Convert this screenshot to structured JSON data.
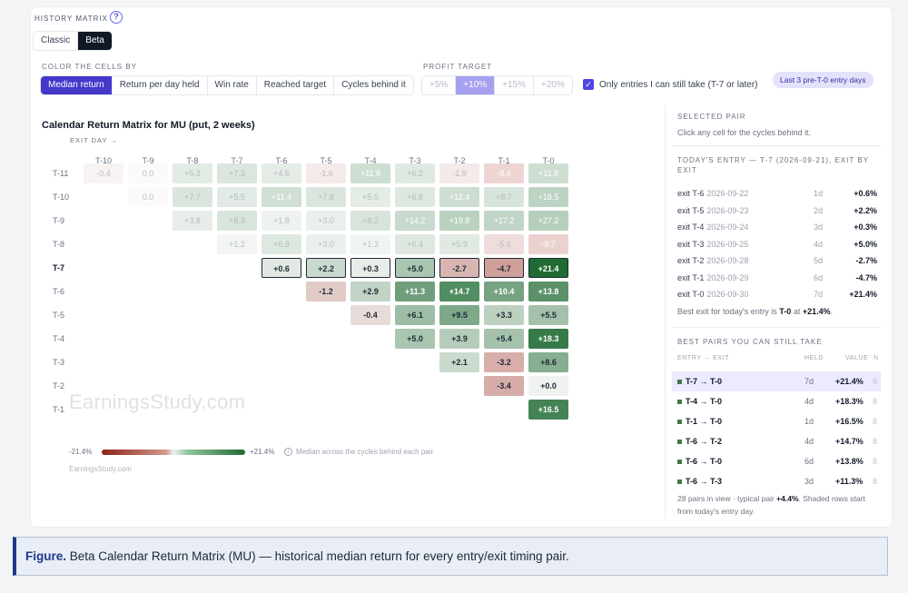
{
  "header": {
    "title": "HISTORY MATRIX",
    "help_icon": "?"
  },
  "view_toggle": [
    {
      "label": "Classic",
      "active": false
    },
    {
      "label": "Beta",
      "active": true
    }
  ],
  "controls": {
    "color_label": "COLOR THE CELLS BY",
    "color_options": [
      {
        "label": "Median return",
        "active": true
      },
      {
        "label": "Return per day held",
        "active": false
      },
      {
        "label": "Win rate",
        "active": false
      },
      {
        "label": "Reached target",
        "active": false
      },
      {
        "label": "Cycles behind it",
        "active": false
      }
    ],
    "profit_label": "PROFIT TARGET",
    "profit_options": [
      {
        "label": "+5%",
        "active": false
      },
      {
        "label": "+10%",
        "active": true
      },
      {
        "label": "+15%",
        "active": false
      },
      {
        "label": "+20%",
        "active": false
      }
    ],
    "only_entries_label": "Only entries I can still take (T-7 or later)",
    "only_entries_checked": true,
    "pill": "Last 3 pre-T-0 entry days"
  },
  "matrix": {
    "title": "Calendar Return Matrix for MU (put, 2 weeks)",
    "exit_day_label": "EXIT DAY →",
    "columns": [
      "T-10",
      "T-9",
      "T-8",
      "T-7",
      "T-6",
      "T-5",
      "T-4",
      "T-3",
      "T-2",
      "T-1",
      "T-0"
    ],
    "current_row": "T-7",
    "rows": [
      {
        "label": "T-11",
        "start": 0,
        "dim": true,
        "values": [
          "-0.4",
          "0.0",
          "+5.3",
          "+7.3",
          "+4.6",
          "-1.6",
          "+11.8",
          "+6.2",
          "-1.9",
          "-8.4",
          "+11.8"
        ],
        "nums": [
          -0.4,
          0.0,
          5.3,
          7.3,
          4.6,
          -1.6,
          11.8,
          6.2,
          -1.9,
          -8.4,
          11.8
        ]
      },
      {
        "label": "T-10",
        "start": 1,
        "dim": true,
        "values": [
          "0.0",
          "+7.7",
          "+5.5",
          "+11.4",
          "+7.8",
          "+5.0",
          "+6.8",
          "+12.4",
          "+8.7",
          "+18.5"
        ],
        "nums": [
          0.0,
          7.7,
          5.5,
          11.4,
          7.8,
          5.0,
          6.8,
          12.4,
          8.7,
          18.5
        ]
      },
      {
        "label": "T-9",
        "start": 2,
        "dim": true,
        "values": [
          "+3.8",
          "+8.3",
          "+1.8",
          "+3.0",
          "+8.2",
          "+14.2",
          "+19.8",
          "+17.2",
          "+27.2"
        ],
        "nums": [
          3.8,
          8.3,
          1.8,
          3.0,
          8.2,
          14.2,
          19.8,
          17.2,
          27.2
        ]
      },
      {
        "label": "T-8",
        "start": 3,
        "dim": true,
        "values": [
          "+1.2",
          "+6.8",
          "+3.0",
          "+1.3",
          "+6.4",
          "+5.9",
          "-5.6",
          "-9.7"
        ],
        "nums": [
          1.2,
          6.8,
          3.0,
          1.3,
          6.4,
          5.9,
          -5.6,
          -9.7
        ]
      },
      {
        "label": "T-7",
        "start": 4,
        "dim": false,
        "sel": true,
        "values": [
          "+0.6",
          "+2.2",
          "+0.3",
          "+5.0",
          "-2.7",
          "-4.7",
          "+21.4"
        ],
        "nums": [
          0.6,
          2.2,
          0.3,
          5.0,
          -2.7,
          -4.7,
          21.4
        ]
      },
      {
        "label": "T-6",
        "start": 5,
        "dim": false,
        "values": [
          "-1.2",
          "+2.9",
          "+11.3",
          "+14.7",
          "+10.4",
          "+13.8"
        ],
        "nums": [
          -1.2,
          2.9,
          11.3,
          14.7,
          10.4,
          13.8
        ]
      },
      {
        "label": "T-5",
        "start": 6,
        "dim": false,
        "values": [
          "-0.4",
          "+6.1",
          "+9.5",
          "+3.3",
          "+5.5"
        ],
        "nums": [
          -0.4,
          6.1,
          9.5,
          3.3,
          5.5
        ]
      },
      {
        "label": "T-4",
        "start": 7,
        "dim": false,
        "values": [
          "+5.0",
          "+3.9",
          "+5.4",
          "+18.3"
        ],
        "nums": [
          5.0,
          3.9,
          5.4,
          18.3
        ]
      },
      {
        "label": "T-3",
        "start": 8,
        "dim": false,
        "values": [
          "+2.1",
          "-3.2",
          "+8.6"
        ],
        "nums": [
          2.1,
          -3.2,
          8.6
        ]
      },
      {
        "label": "T-2",
        "start": 9,
        "dim": false,
        "values": [
          "-3.4",
          "+0.0"
        ],
        "nums": [
          -3.4,
          0.0
        ]
      },
      {
        "label": "T-1",
        "start": 10,
        "dim": false,
        "values": [
          "+16.5"
        ],
        "nums": [
          16.5
        ]
      }
    ],
    "scale_min": -21.4,
    "scale_max": 21.4,
    "legend_min": "-21.4%",
    "legend_max": "+21.4%",
    "legend_note": "Median across the cycles behind each pair",
    "watermark": "EarningsStudy.com",
    "credit": "EarningsStudy.com"
  },
  "right_panel": {
    "selected_title": "SELECTED PAIR",
    "selected_hint": "Click any cell for the cycles behind it.",
    "today_title": "TODAY'S ENTRY — T-7 (2026-09-21), EXIT BY EXIT",
    "today_rows": [
      {
        "exit": "exit T-6",
        "date": "2026-09-22",
        "held": "1d",
        "value": "+0.6%"
      },
      {
        "exit": "exit T-5",
        "date": "2026-09-23",
        "held": "2d",
        "value": "+2.2%"
      },
      {
        "exit": "exit T-4",
        "date": "2026-09-24",
        "held": "3d",
        "value": "+0.3%"
      },
      {
        "exit": "exit T-3",
        "date": "2026-09-25",
        "held": "4d",
        "value": "+5.0%"
      },
      {
        "exit": "exit T-2",
        "date": "2026-09-28",
        "held": "5d",
        "value": "-2.7%"
      },
      {
        "exit": "exit T-1",
        "date": "2026-09-29",
        "held": "6d",
        "value": "-4.7%"
      },
      {
        "exit": "exit T-0",
        "date": "2026-09-30",
        "held": "7d",
        "value": "+21.4%"
      }
    ],
    "best_exit_prefix": "Best exit for today's entry is",
    "best_exit_day": "T-0",
    "best_exit_mid": "at",
    "best_exit_value": "+21.4%",
    "best_exit_end": ".",
    "best_title": "BEST PAIRS YOU CAN STILL TAKE",
    "best_headers": {
      "pair": "ENTRY → EXIT",
      "held": "HELD",
      "value": "VALUE",
      "n": "N"
    },
    "best_rows": [
      {
        "pair": "T-7 → T-0",
        "held": "7d",
        "value": "+21.4%",
        "n": "8",
        "highlight": true
      },
      {
        "pair": "T-4 → T-0",
        "held": "4d",
        "value": "+18.3%",
        "n": "8"
      },
      {
        "pair": "T-1 → T-0",
        "held": "1d",
        "value": "+16.5%",
        "n": "8"
      },
      {
        "pair": "T-6 → T-2",
        "held": "4d",
        "value": "+14.7%",
        "n": "8"
      },
      {
        "pair": "T-6 → T-0",
        "held": "6d",
        "value": "+13.8%",
        "n": "8"
      },
      {
        "pair": "T-6 → T-3",
        "held": "3d",
        "value": "+11.3%",
        "n": "8"
      }
    ],
    "footer_prefix": "28 pairs in view · typical pair",
    "footer_value": "+4.4%",
    "footer_suffix": ". Shaded rows start from today's entry day."
  },
  "caption": {
    "label": "Figure.",
    "text": "Beta Calendar Return Matrix (MU) — historical median return for every entry/exit timing pair."
  },
  "colors": {
    "accent": "#4338ca",
    "positive": "#1f6b33",
    "negative": "#a8322a"
  }
}
